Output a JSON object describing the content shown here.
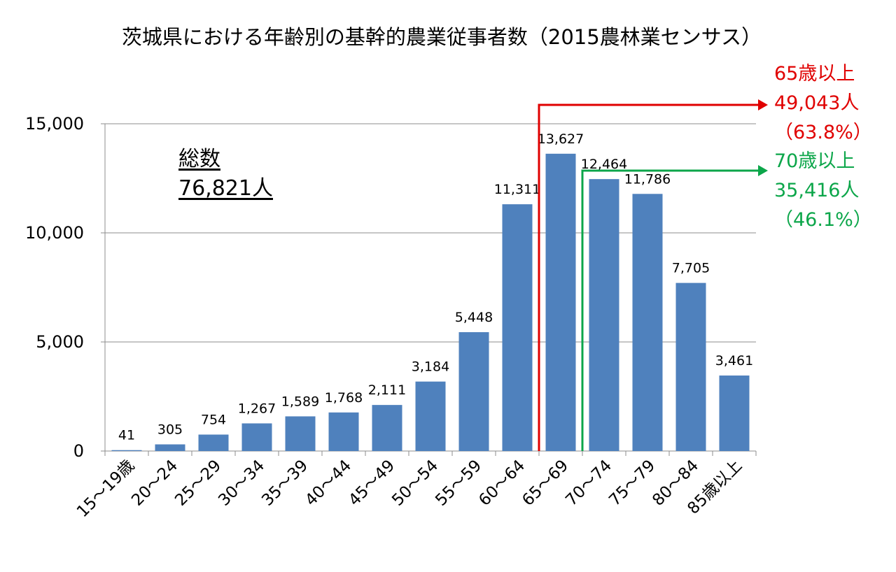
{
  "chart_data": {
    "type": "bar",
    "title": "茨城県における年齢別の基幹的農業従事者数（2015農林業センサス）",
    "categories": [
      "15～19歳",
      "20～24",
      "25～29",
      "30～34",
      "35～39",
      "40～44",
      "45～49",
      "50～54",
      "55～59",
      "60～64",
      "65～69",
      "70～74",
      "75～79",
      "80～84",
      "85歳以上"
    ],
    "values": [
      41,
      305,
      754,
      1267,
      1589,
      1768,
      2111,
      3184,
      5448,
      11311,
      13627,
      12464,
      11786,
      7705,
      3461
    ],
    "data_labels": [
      "41",
      "305",
      "754",
      "1,267",
      "1,589",
      "1,768",
      "2,111",
      "3,184",
      "5,448",
      "11,311",
      "13,627",
      "12,464",
      "11,786",
      "7,705",
      "3,461"
    ],
    "ylim": [
      0,
      15000
    ],
    "yticks": [
      0,
      5000,
      10000,
      15000
    ],
    "ytick_labels": [
      "0",
      "5,000",
      "10,000",
      "15,000"
    ],
    "grid": true,
    "bar_color": "#4f81bd",
    "annotations": {
      "total": {
        "line1": "総数",
        "line2": "76,821人"
      },
      "over65": {
        "line1": "65歳以上",
        "line2": "49,043人",
        "line3": "（63.8%）",
        "color": "#e00000"
      },
      "over70": {
        "line1": "70歳以上",
        "line2": "35,416人",
        "line3": "（46.1%）",
        "color": "#0ca64a"
      }
    }
  }
}
